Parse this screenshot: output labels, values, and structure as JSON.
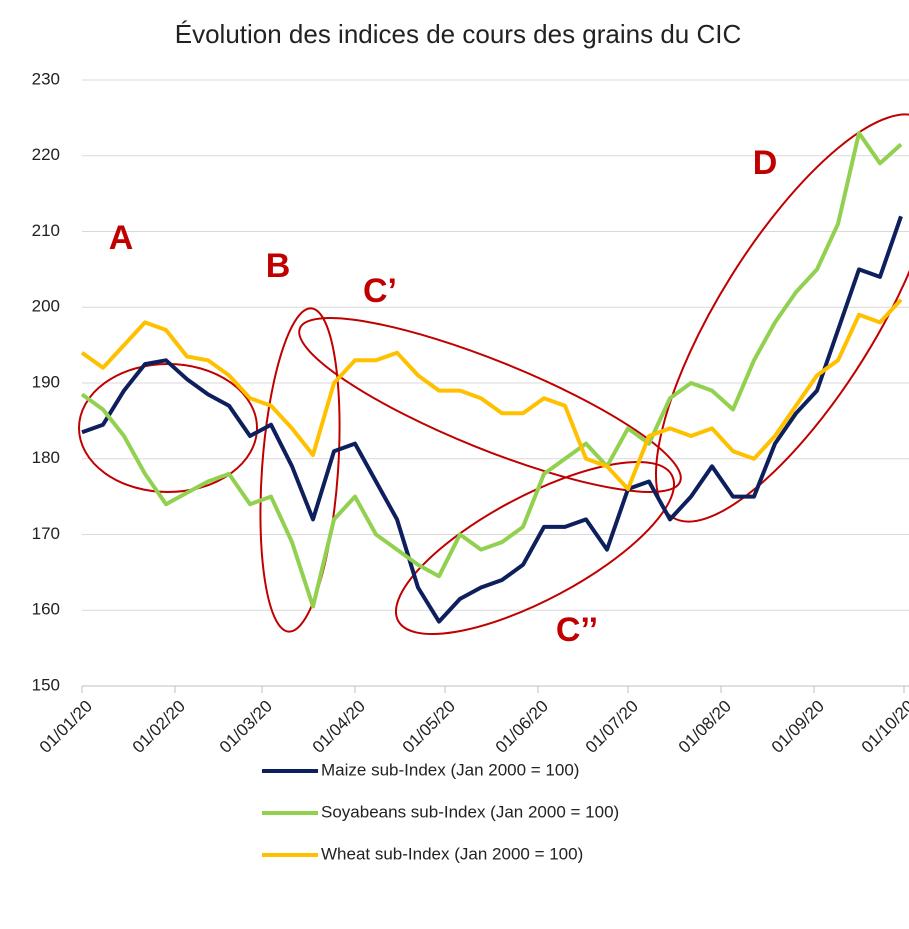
{
  "chart_data": {
    "type": "line",
    "title": "Évolution des indices de cours des grains du CIC",
    "x": [
      "2020-01-01",
      "2020-01-08",
      "2020-01-15",
      "2020-01-22",
      "2020-01-29",
      "2020-02-05",
      "2020-02-12",
      "2020-02-19",
      "2020-02-26",
      "2020-03-04",
      "2020-03-11",
      "2020-03-18",
      "2020-03-25",
      "2020-04-01",
      "2020-04-08",
      "2020-04-15",
      "2020-04-22",
      "2020-04-29",
      "2020-05-06",
      "2020-05-13",
      "2020-05-20",
      "2020-05-27",
      "2020-06-03",
      "2020-06-10",
      "2020-06-17",
      "2020-06-24",
      "2020-07-01",
      "2020-07-08",
      "2020-07-15",
      "2020-07-22",
      "2020-07-29",
      "2020-08-05",
      "2020-08-12",
      "2020-08-19",
      "2020-08-26",
      "2020-09-02",
      "2020-09-09",
      "2020-09-16",
      "2020-09-23",
      "2020-09-30"
    ],
    "series": [
      {
        "name": "Maize sub-Index (Jan 2000 = 100)",
        "color": "#0d1f5c",
        "values": [
          183.5,
          184.5,
          189,
          192.5,
          193,
          190.5,
          188.5,
          187,
          183,
          184.5,
          179,
          172,
          181,
          182,
          177,
          172,
          163,
          158.5,
          161.5,
          163,
          164,
          166,
          171,
          171,
          172,
          168,
          176,
          177,
          172,
          175,
          179,
          175,
          175,
          182,
          186,
          189,
          197,
          205,
          204,
          212
        ]
      },
      {
        "name": "Soyabeans sub-Index (Jan 2000 = 100)",
        "color": "#92d050",
        "values": [
          188.5,
          186.5,
          183,
          178,
          174,
          175.5,
          177,
          178,
          174,
          175,
          169,
          160.5,
          172,
          175,
          170,
          168,
          166,
          164.5,
          170,
          168,
          169,
          171,
          178,
          180,
          182,
          179,
          184,
          182,
          188,
          190,
          189,
          186.5,
          193,
          198,
          202,
          205,
          211,
          223,
          219,
          221.5
        ]
      },
      {
        "name": "Wheat sub-Index (Jan 2000 = 100)",
        "color": "#ffc000",
        "values": [
          194,
          192,
          195,
          198,
          197,
          193.5,
          193,
          191,
          188,
          187,
          184,
          180.5,
          190,
          193,
          193,
          194,
          191,
          189,
          189,
          188,
          186,
          186,
          188,
          187,
          180,
          179,
          176,
          183,
          184,
          183,
          184,
          181,
          180,
          183,
          187,
          191,
          193,
          199,
          198,
          201
        ]
      }
    ],
    "xlim": [
      "2020-01-01",
      "2020-10-01"
    ],
    "xticks": [
      {
        "value": "2020-01-01",
        "label": "01/01/20"
      },
      {
        "value": "2020-02-01",
        "label": "01/02/20"
      },
      {
        "value": "2020-03-01",
        "label": "01/03/20"
      },
      {
        "value": "2020-04-01",
        "label": "01/04/20"
      },
      {
        "value": "2020-05-01",
        "label": "01/05/20"
      },
      {
        "value": "2020-06-01",
        "label": "01/06/20"
      },
      {
        "value": "2020-07-01",
        "label": "01/07/20"
      },
      {
        "value": "2020-08-01",
        "label": "01/08/20"
      },
      {
        "value": "2020-09-01",
        "label": "01/09/20"
      },
      {
        "value": "2020-10-01",
        "label": "01/10/20"
      }
    ],
    "ylim": [
      150,
      230
    ],
    "yticks": [
      150,
      160,
      170,
      180,
      190,
      200,
      210,
      220,
      230
    ],
    "grid": true,
    "annotations": [
      "A",
      "B",
      "C’",
      "C’’",
      "D"
    ]
  }
}
